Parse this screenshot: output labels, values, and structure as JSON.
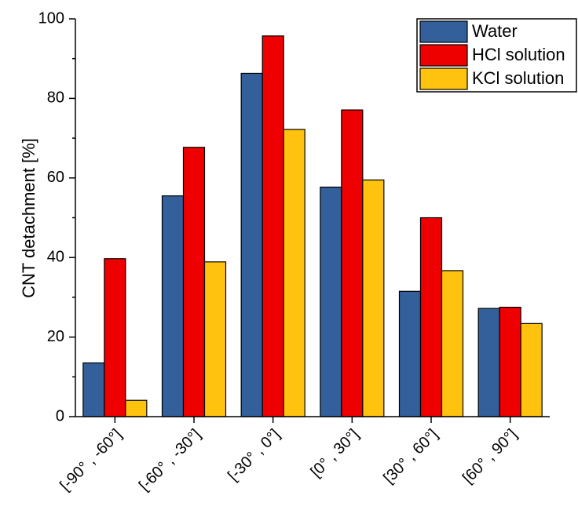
{
  "chart_data": {
    "type": "bar",
    "title": "",
    "xlabel": "",
    "ylabel": "CNT detachment [%]",
    "ylim": [
      0,
      100
    ],
    "yticks": [
      0,
      20,
      40,
      60,
      80,
      100
    ],
    "grid": false,
    "legend_position": "top-right",
    "categories": [
      "[-90° , -60°]",
      "[-60° , -30°]",
      "[-30° , 0°]",
      "[0° , 30°]",
      "[30° , 60°]",
      "[60° , 90°]"
    ],
    "series": [
      {
        "name": "Water",
        "color": "#335f9a",
        "values": [
          13.5,
          55.5,
          86.3,
          57.7,
          31.5,
          27.2
        ]
      },
      {
        "name": "HCl solution",
        "color": "#ee0000",
        "values": [
          39.7,
          67.7,
          95.7,
          77.1,
          50.0,
          27.5
        ]
      },
      {
        "name": "KCl solution",
        "color": "#ffc20e",
        "values": [
          4.1,
          38.9,
          72.2,
          59.5,
          36.7,
          23.4
        ]
      }
    ]
  }
}
